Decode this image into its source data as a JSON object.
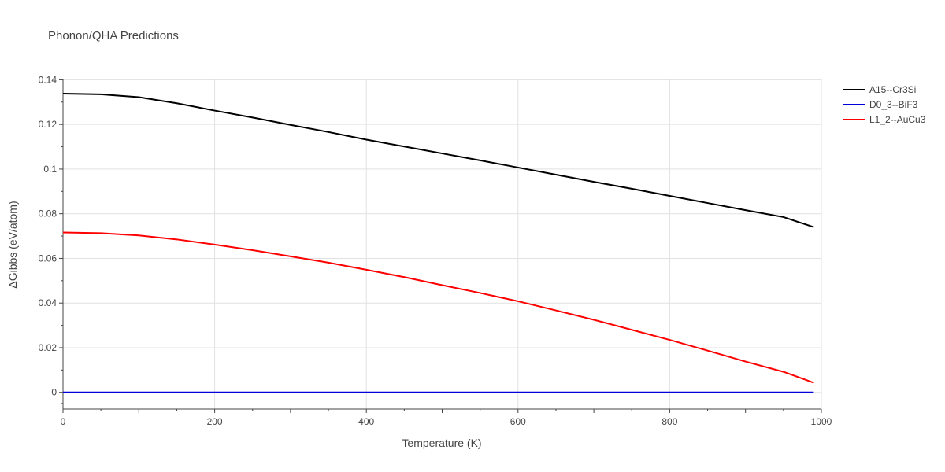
{
  "chart_data": {
    "type": "line",
    "title": "Phonon/QHA Predictions",
    "xlabel": "Temperature (K)",
    "ylabel": "ΔGibbs (eV/atom)",
    "xlim": [
      0,
      1000
    ],
    "ylim": [
      -0.0075,
      0.1405
    ],
    "x_ticks": [
      0,
      200,
      400,
      600,
      800,
      1000
    ],
    "x_tick_labels": [
      "0",
      "200",
      "400",
      "600",
      "800",
      "1000"
    ],
    "y_ticks": [
      0,
      0.02,
      0.04,
      0.06,
      0.08,
      0.1,
      0.12,
      0.14
    ],
    "y_tick_labels": [
      "0",
      "0.02",
      "0.04",
      "0.06",
      "0.08",
      "0.1",
      "0.12",
      "0.14"
    ],
    "grid": true,
    "legend_position": "top-right",
    "series": [
      {
        "name": "A15--Cr3Si",
        "color": "#000000",
        "x": [
          0,
          50,
          100,
          150,
          200,
          250,
          300,
          350,
          400,
          450,
          500,
          550,
          600,
          650,
          700,
          750,
          800,
          850,
          900,
          950,
          990
        ],
        "y": [
          0.1338,
          0.1335,
          0.1322,
          0.1295,
          0.1262,
          0.1231,
          0.1198,
          0.1166,
          0.1132,
          0.1101,
          0.107,
          0.1039,
          0.1007,
          0.0975,
          0.0943,
          0.0912,
          0.088,
          0.0848,
          0.0816,
          0.0785,
          0.074
        ]
      },
      {
        "name": "D0_3--BiF3",
        "color": "#0000dd",
        "x": [
          0,
          990
        ],
        "y": [
          0.0,
          0.0
        ]
      },
      {
        "name": "L1_2--AuCu3",
        "color": "#ff0000",
        "x": [
          0,
          50,
          100,
          150,
          200,
          250,
          300,
          350,
          400,
          450,
          500,
          550,
          600,
          650,
          700,
          750,
          800,
          850,
          900,
          950,
          990
        ],
        "y": [
          0.0716,
          0.0713,
          0.0703,
          0.0685,
          0.0662,
          0.0637,
          0.0609,
          0.0581,
          0.0549,
          0.0516,
          0.048,
          0.0445,
          0.0408,
          0.0367,
          0.0325,
          0.028,
          0.0235,
          0.0187,
          0.0138,
          0.0092,
          0.0043
        ]
      }
    ]
  }
}
